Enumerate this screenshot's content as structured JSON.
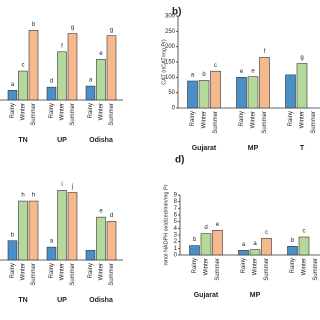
{
  "chart_data": [
    {
      "type": "bar",
      "categories": [
        "TN",
        "UP",
        "Odisha"
      ],
      "ylim": [
        0,
        70
      ],
      "series": [
        {
          "name": "Rainy",
          "color": "#4a8fc7",
          "values": [
            9,
            12,
            13
          ],
          "letters": [
            "a",
            "d",
            "a"
          ]
        },
        {
          "name": "Winter",
          "color": "#b5d99a",
          "values": [
            27,
            45,
            38
          ],
          "letters": [
            "c",
            "f",
            "e"
          ]
        },
        {
          "name": "Summer",
          "color": "#f5b98d",
          "values": [
            65,
            62,
            60
          ],
          "letters": [
            "b",
            "g",
            "g"
          ]
        }
      ]
    },
    {
      "type": "bar",
      "title": "b)",
      "y_label": "CAT (nCAT/mg Pr)",
      "categories": [
        "Gujarat",
        "MP",
        "T"
      ],
      "ylim": [
        0,
        300
      ],
      "yticks": [
        0,
        50,
        100,
        150,
        200,
        250,
        300
      ],
      "series": [
        {
          "name": "Rainy",
          "color": "#4a8fc7",
          "values": [
            88,
            100,
            108
          ],
          "letters": [
            "a",
            "e",
            null
          ]
        },
        {
          "name": "Winter",
          "color": "#b5d99a",
          "values": [
            90,
            102,
            145
          ],
          "letters": [
            "b",
            "e",
            "g"
          ]
        },
        {
          "name": "Summer",
          "color": "#f5b98d",
          "values": [
            120,
            165,
            null
          ],
          "letters": [
            "c",
            "f",
            null
          ]
        }
      ]
    },
    {
      "type": "bar",
      "categories": [
        "TN",
        "UP",
        "Odisha"
      ],
      "ylim": [
        0,
        70
      ],
      "series": [
        {
          "name": "Rainy",
          "color": "#4a8fc7",
          "values": [
            18,
            12,
            9
          ],
          "letters": [
            "b",
            "a",
            null
          ]
        },
        {
          "name": "Winter",
          "color": "#b5d99a",
          "values": [
            55,
            65,
            40
          ],
          "letters": [
            "h",
            "i",
            "e"
          ]
        },
        {
          "name": "Summer",
          "color": "#f5b98d",
          "values": [
            55,
            63,
            36
          ],
          "letters": [
            "h",
            "j",
            "d"
          ]
        }
      ]
    },
    {
      "type": "bar",
      "title": "d)",
      "y_label": "nmol NADPH oxidized/min/mg Pr",
      "categories": [
        "Gujarat",
        "MP",
        null
      ],
      "ylim": [
        0,
        9
      ],
      "yticks": [
        0,
        1,
        2,
        3,
        4,
        5,
        6,
        7,
        8,
        9
      ],
      "series": [
        {
          "name": "Rainy",
          "color": "#4a8fc7",
          "values": [
            1.4,
            0.7,
            1.3
          ],
          "letters": [
            "b",
            "a",
            "b"
          ]
        },
        {
          "name": "Winter",
          "color": "#b5d99a",
          "values": [
            3.2,
            0.8,
            2.7
          ],
          "letters": [
            "d",
            "a",
            "c"
          ]
        },
        {
          "name": "Summer",
          "color": "#f5b98d",
          "values": [
            3.7,
            2.5,
            null
          ],
          "letters": [
            "e",
            "c",
            null
          ]
        }
      ]
    }
  ]
}
